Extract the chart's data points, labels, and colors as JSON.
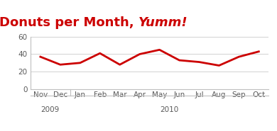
{
  "title_regular": "Donuts per Month, ",
  "title_italic": "Yumm!",
  "title_color": "#CC0000",
  "months": [
    "Nov",
    "Dec",
    "Jan",
    "Feb",
    "Mar",
    "Apr",
    "May",
    "Jun",
    "Jul",
    "Aug",
    "Sep",
    "Oct"
  ],
  "values": [
    37,
    28,
    30,
    41,
    28,
    40,
    45,
    33,
    31,
    27,
    37,
    43
  ],
  "line_color": "#CC0000",
  "line_width": 2.0,
  "ylim": [
    0,
    60
  ],
  "yticks": [
    0,
    20,
    40,
    60
  ],
  "year_groups": [
    {
      "label": "2009",
      "start": 0,
      "end": 1
    },
    {
      "label": "2010",
      "start": 2,
      "end": 11
    }
  ],
  "bg_color": "#FFFFFF",
  "plot_bg_color": "#FFFFFF",
  "tick_color": "#595959",
  "spine_color": "#BFBFBF",
  "tick_fontsize": 7.5,
  "title_fontsize": 13
}
